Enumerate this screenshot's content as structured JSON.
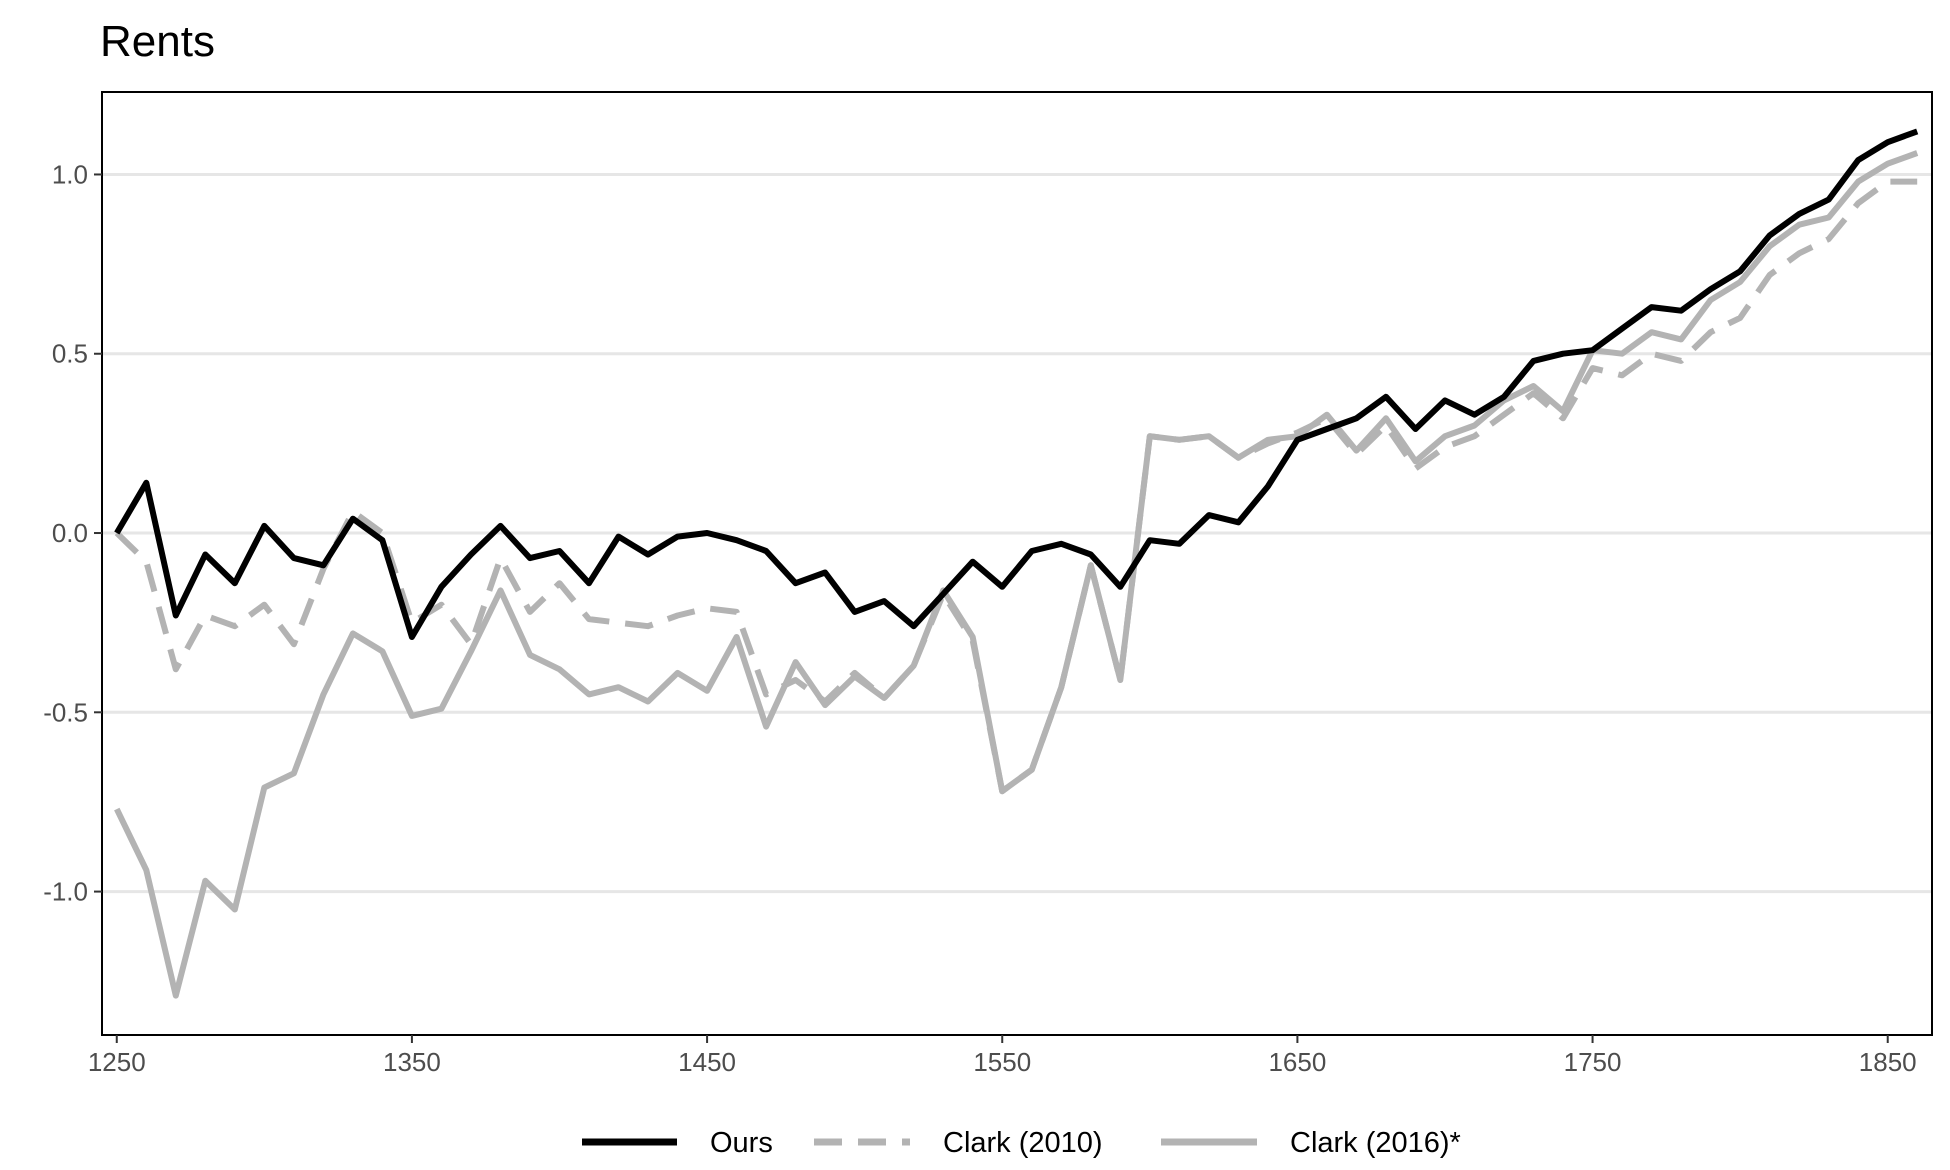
{
  "chart_data": {
    "type": "line",
    "title": "Rents",
    "xlabel": "",
    "ylabel": "",
    "xlim": [
      1245,
      1865
    ],
    "ylim": [
      -1.4,
      1.23
    ],
    "x_ticks": [
      1250,
      1350,
      1450,
      1550,
      1650,
      1750,
      1850
    ],
    "x_tick_labels": [
      "1250",
      "1350",
      "1450",
      "1550",
      "1650",
      "1750",
      "1850"
    ],
    "y_ticks": [
      -1.0,
      -0.5,
      0.0,
      0.5,
      1.0
    ],
    "y_tick_labels": [
      "-1.0",
      "-0.5",
      "0.0",
      "0.5",
      "1.0"
    ],
    "grid": true,
    "legend_position": "bottom",
    "x": [
      1250,
      1260,
      1270,
      1280,
      1290,
      1300,
      1310,
      1320,
      1330,
      1340,
      1350,
      1360,
      1370,
      1380,
      1390,
      1400,
      1410,
      1420,
      1430,
      1440,
      1450,
      1460,
      1470,
      1480,
      1490,
      1500,
      1510,
      1520,
      1530,
      1540,
      1550,
      1560,
      1570,
      1580,
      1590,
      1600,
      1610,
      1620,
      1630,
      1640,
      1650,
      1660,
      1670,
      1680,
      1690,
      1700,
      1710,
      1720,
      1730,
      1740,
      1750,
      1760,
      1770,
      1780,
      1790,
      1800,
      1810,
      1820,
      1830,
      1840,
      1850,
      1860
    ],
    "series": [
      {
        "name": "Ours",
        "color": "#000000",
        "style": "solid",
        "values": [
          0.0,
          0.14,
          -0.23,
          -0.06,
          -0.14,
          0.02,
          -0.07,
          -0.09,
          0.04,
          -0.02,
          -0.29,
          -0.15,
          -0.06,
          0.02,
          -0.07,
          -0.05,
          -0.14,
          -0.01,
          -0.06,
          -0.01,
          0.0,
          -0.02,
          -0.05,
          -0.14,
          -0.11,
          -0.22,
          -0.19,
          -0.26,
          -0.17,
          -0.08,
          -0.15,
          -0.05,
          -0.03,
          -0.06,
          -0.15,
          -0.02,
          -0.03,
          0.05,
          0.03,
          0.13,
          0.26,
          0.29,
          0.32,
          0.38,
          0.29,
          0.37,
          0.33,
          0.38,
          0.48,
          0.5,
          0.51,
          0.57,
          0.63,
          0.62,
          0.68,
          0.73,
          0.83,
          0.89,
          0.93,
          1.04,
          1.09,
          1.12
        ]
      },
      {
        "name": "Clark (2010)",
        "color": "#b3b3b3",
        "style": "dashed",
        "values": [
          0.0,
          -0.08,
          -0.38,
          -0.23,
          -0.26,
          -0.2,
          -0.31,
          -0.1,
          0.06,
          0.0,
          -0.25,
          -0.2,
          -0.31,
          -0.07,
          -0.22,
          -0.14,
          -0.24,
          -0.25,
          -0.26,
          -0.23,
          -0.21,
          -0.22,
          -0.45,
          -0.41,
          -0.47,
          -0.39,
          -0.46,
          -0.37,
          -0.17,
          -0.3,
          -0.72,
          -0.66,
          -0.43,
          -0.09,
          -0.41,
          0.27,
          0.26,
          0.27,
          0.21,
          0.25,
          0.28,
          0.32,
          0.22,
          0.3,
          0.18,
          0.24,
          0.27,
          0.33,
          0.39,
          0.32,
          0.46,
          0.44,
          0.5,
          0.48,
          0.56,
          0.6,
          0.72,
          0.78,
          0.82,
          0.92,
          0.98,
          0.98
        ]
      },
      {
        "name": "Clark (2016)*",
        "color": "#b3b3b3",
        "style": "solid",
        "values": [
          -0.77,
          -0.94,
          -1.29,
          -0.97,
          -1.05,
          -0.71,
          -0.67,
          -0.45,
          -0.28,
          -0.33,
          -0.51,
          -0.49,
          -0.33,
          -0.16,
          -0.34,
          -0.38,
          -0.45,
          -0.43,
          -0.47,
          -0.39,
          -0.44,
          -0.29,
          -0.54,
          -0.36,
          -0.48,
          -0.4,
          -0.46,
          -0.37,
          -0.16,
          -0.29,
          -0.72,
          -0.66,
          -0.43,
          -0.09,
          -0.41,
          0.27,
          0.26,
          0.27,
          0.21,
          0.26,
          0.27,
          0.33,
          0.23,
          0.32,
          0.2,
          0.27,
          0.3,
          0.37,
          0.41,
          0.34,
          0.51,
          0.5,
          0.56,
          0.54,
          0.65,
          0.7,
          0.8,
          0.86,
          0.88,
          0.98,
          1.03,
          1.06
        ]
      }
    ]
  }
}
